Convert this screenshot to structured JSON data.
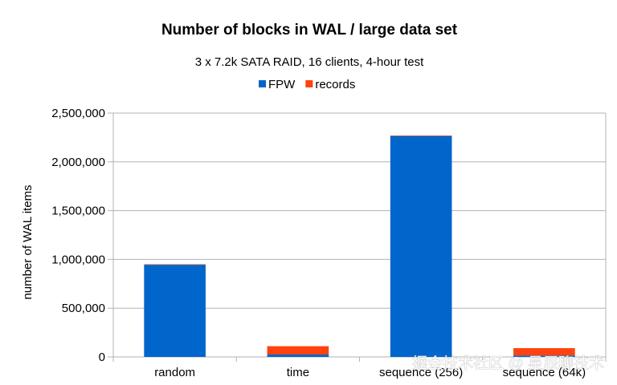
{
  "chart_data": {
    "type": "bar",
    "stacked": true,
    "title": "Number of blocks in WAL / large data set",
    "subtitle": "3 x 7.2k SATA RAID, 16 clients, 4-hour test",
    "xlabel": "",
    "ylabel": "number of WAL items",
    "categories": [
      "random",
      "time",
      "sequence (256)",
      "sequence (64k)"
    ],
    "series": [
      {
        "name": "FPW",
        "color": "#0066cc",
        "values": [
          945000,
          25000,
          2265000,
          15000
        ]
      },
      {
        "name": "records",
        "color": "#ff420e",
        "values": [
          5000,
          85000,
          5000,
          75000
        ]
      }
    ],
    "ylim": [
      0,
      2500000
    ],
    "yticks": [
      {
        "value": 0,
        "label": "0"
      },
      {
        "value": 500000,
        "label": "500,000"
      },
      {
        "value": 1000000,
        "label": "1,000,000"
      },
      {
        "value": 1500000,
        "label": "1,500,000"
      },
      {
        "value": 2000000,
        "label": "2,000,000"
      },
      {
        "value": 2500000,
        "label": "2,500,000"
      }
    ],
    "grid": true,
    "legend_position": "top"
  },
  "watermark": "掘金技术社区 @ 星辰聊技术"
}
